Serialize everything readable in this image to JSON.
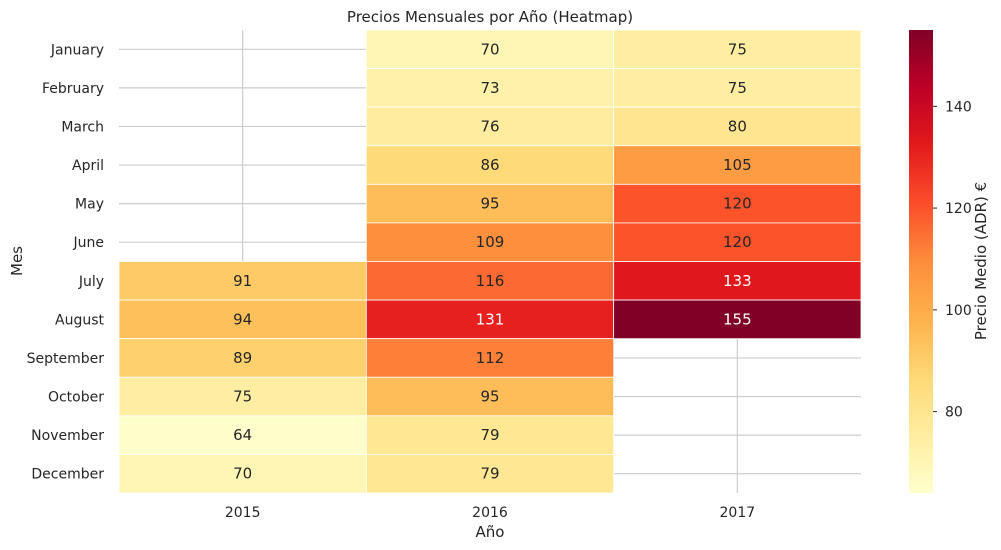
{
  "chart_data": {
    "type": "heatmap",
    "title": "Precios Mensuales por Año (Heatmap)",
    "xlabel": "Año",
    "ylabel": "Mes",
    "x_categories": [
      "2015",
      "2016",
      "2017"
    ],
    "y_categories": [
      "January",
      "February",
      "March",
      "April",
      "May",
      "June",
      "July",
      "August",
      "September",
      "October",
      "November",
      "December"
    ],
    "values": [
      [
        null,
        70,
        75
      ],
      [
        null,
        73,
        75
      ],
      [
        null,
        76,
        80
      ],
      [
        null,
        86,
        105
      ],
      [
        null,
        95,
        120
      ],
      [
        null,
        109,
        120
      ],
      [
        91,
        116,
        133
      ],
      [
        94,
        131,
        155
      ],
      [
        89,
        112,
        null
      ],
      [
        75,
        95,
        null
      ],
      [
        64,
        79,
        null
      ],
      [
        70,
        79,
        null
      ]
    ],
    "colorbar": {
      "label": "Precio Medio (ADR) €",
      "range": [
        64,
        155
      ],
      "ticks": [
        80,
        100,
        120,
        140
      ],
      "colormap": "YlOrRd"
    },
    "grid": true
  }
}
